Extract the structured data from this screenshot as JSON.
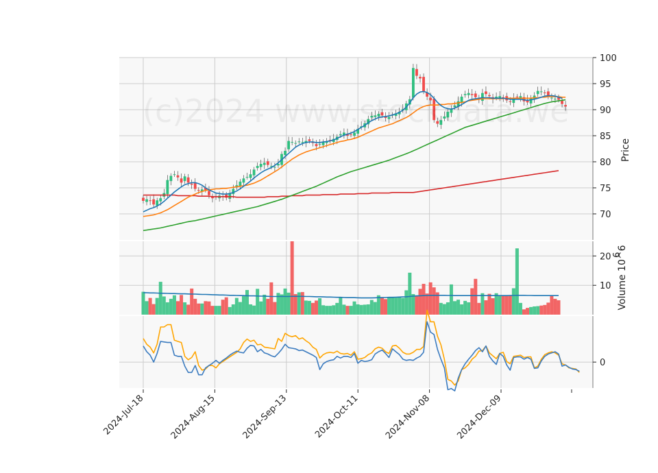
{
  "chart_data": {
    "type": "candlestick",
    "watermark": "(c)2024 www.stockdata.we",
    "colors": {
      "up": "#2fbf7f",
      "down": "#f14b4b",
      "ma_fast": "#1f77b4",
      "ma_mid": "#ff7f0e",
      "ma_slow": "#2ca02c",
      "ma_long": "#d62728",
      "volume_ma": "#1f77b4",
      "macd": "#3b7bbf",
      "signal": "#ffa500",
      "panel_bg": "#f8f8f8",
      "grid": "#cccccc"
    },
    "x_ticks": [
      "2024-Jul-18",
      "2024-Aug-15",
      "2024-Sep-13",
      "2024-Oct-11",
      "2024-Nov-08",
      "2024-Dec-09"
    ],
    "price_panel": {
      "ylabel": "Price",
      "yticks": [
        70,
        75,
        80,
        85,
        90,
        95,
        100
      ],
      "ylim": [
        65,
        100
      ],
      "close": [
        72.5,
        72.8,
        72.5,
        71.8,
        72.6,
        73.0,
        74.0,
        76.5,
        77.3,
        77.6,
        77.0,
        76.0,
        77.2,
        76.0,
        75.6,
        74.8,
        74.5,
        74.7,
        74.6,
        73.6,
        73.0,
        73.2,
        73.5,
        73.4,
        73.1,
        74.0,
        74.8,
        75.5,
        76.2,
        76.8,
        77.1,
        77.6,
        78.5,
        79.2,
        79.6,
        79.8,
        79.4,
        79.2,
        79.0,
        79.6,
        81.5,
        82.1,
        84.0,
        83.8,
        83.6,
        83.9,
        83.8,
        84.0,
        84.0,
        83.6,
        83.0,
        83.4,
        83.8,
        83.9,
        84.0,
        84.4,
        84.8,
        85.3,
        85.6,
        85.0,
        85.2,
        85.6,
        86.3,
        86.8,
        87.4,
        88.2,
        88.8,
        88.9,
        89.2,
        88.9,
        88.4,
        88.6,
        89.0,
        89.3,
        89.6,
        90.1,
        91.2,
        92.0,
        98.0,
        96.5,
        96.0,
        93.5,
        92.5,
        91.8,
        88.0,
        87.3,
        88.0,
        88.7,
        89.6,
        90.2,
        90.8,
        91.6,
        92.5,
        93.0,
        93.2,
        92.8,
        92.4,
        91.9,
        93.2,
        93.0,
        92.6,
        92.0,
        92.5,
        92.6,
        92.3,
        91.8,
        91.5,
        92.2,
        92.4,
        92.6,
        91.6,
        91.4,
        92.3,
        92.7,
        93.6,
        93.5,
        93.2,
        92.5,
        92.3,
        92.1,
        91.9,
        91.1,
        90.6
      ],
      "ma_fast": [
        70.4,
        70.7,
        71.0,
        71.2,
        71.5,
        71.9,
        72.4,
        73.0,
        73.6,
        74.2,
        74.7,
        75.2,
        75.6,
        75.8,
        76.0,
        76.0,
        75.8,
        75.5,
        75.0,
        74.6,
        74.3,
        74.0,
        73.9,
        73.8,
        73.8,
        73.9,
        74.1,
        74.4,
        74.8,
        75.3,
        75.8,
        76.3,
        76.9,
        77.4,
        77.9,
        78.3,
        78.6,
        78.9,
        79.3,
        79.8,
        80.4,
        81.0,
        81.6,
        82.2,
        82.8,
        83.2,
        83.5,
        83.7,
        83.8,
        83.8,
        83.7,
        83.7,
        83.8,
        83.9,
        84.0,
        84.2,
        84.5,
        84.8,
        85.1,
        85.3,
        85.5,
        85.8,
        86.2,
        86.6,
        87.0,
        87.5,
        87.9,
        88.2,
        88.5,
        88.6,
        88.7,
        88.8,
        89.0,
        89.2,
        89.5,
        89.9,
        90.5,
        91.3,
        92.3,
        93.0,
        93.4,
        93.5,
        93.3,
        92.9,
        92.2,
        91.4,
        90.8,
        90.4,
        90.2,
        90.1,
        90.3,
        90.6,
        91.0,
        91.4,
        91.8,
        92.0,
        92.1,
        92.2,
        92.3,
        92.3,
        92.3,
        92.2,
        92.2,
        92.2,
        92.2,
        92.1,
        92.0,
        92.0,
        92.0,
        92.0,
        91.9,
        91.8,
        91.9,
        92.0,
        92.2,
        92.4,
        92.6,
        92.7,
        92.7,
        92.6,
        92.4,
        92.2
      ],
      "ma_mid": [
        69.5,
        69.6,
        69.7,
        69.8,
        70.0,
        70.2,
        70.5,
        70.8,
        71.2,
        71.6,
        72.0,
        72.4,
        72.8,
        73.2,
        73.5,
        73.8,
        74.1,
        74.3,
        74.5,
        74.6,
        74.7,
        74.8,
        74.8,
        74.9,
        74.9,
        75.0,
        75.1,
        75.2,
        75.3,
        75.4,
        75.5,
        75.7,
        75.9,
        76.2,
        76.5,
        76.9,
        77.3,
        77.7,
        78.1,
        78.5,
        79.0,
        79.5,
        80.0,
        80.5,
        80.9,
        81.3,
        81.6,
        81.9,
        82.1,
        82.3,
        82.5,
        82.7,
        82.9,
        83.1,
        83.3,
        83.5,
        83.7,
        83.9,
        84.0,
        84.2,
        84.3,
        84.5,
        84.7,
        85.0,
        85.3,
        85.6,
        85.9,
        86.2,
        86.5,
        86.7,
        86.9,
        87.1,
        87.3,
        87.6,
        87.9,
        88.2,
        88.5,
        88.9,
        89.4,
        89.9,
        90.3,
        90.6,
        90.8,
        90.9,
        90.9,
        90.9,
        91.0,
        91.0,
        91.1,
        91.1,
        91.2,
        91.3,
        91.4,
        91.5,
        91.7,
        91.8,
        91.9,
        92.0,
        92.1,
        92.1,
        92.1,
        92.1,
        92.1,
        92.1,
        92.1,
        92.2,
        92.2,
        92.2,
        92.2,
        92.2,
        92.2,
        92.2,
        92.2,
        92.3,
        92.3,
        92.4,
        92.4,
        92.5,
        92.5,
        92.5,
        92.5,
        92.4,
        92.4
      ],
      "ma_slow": [
        66.8,
        66.9,
        67.0,
        67.1,
        67.2,
        67.3,
        67.45,
        67.6,
        67.75,
        67.9,
        68.05,
        68.2,
        68.35,
        68.5,
        68.6,
        68.7,
        68.85,
        69.0,
        69.15,
        69.3,
        69.45,
        69.6,
        69.75,
        69.9,
        70.05,
        70.2,
        70.35,
        70.5,
        70.65,
        70.8,
        70.95,
        71.1,
        71.25,
        71.4,
        71.6,
        71.8,
        72.0,
        72.2,
        72.4,
        72.6,
        72.8,
        73.05,
        73.3,
        73.55,
        73.8,
        74.05,
        74.3,
        74.55,
        74.8,
        75.05,
        75.3,
        75.6,
        75.9,
        76.2,
        76.5,
        76.8,
        77.1,
        77.35,
        77.6,
        77.85,
        78.1,
        78.3,
        78.5,
        78.7,
        78.9,
        79.1,
        79.3,
        79.5,
        79.7,
        79.9,
        80.1,
        80.3,
        80.55,
        80.8,
        81.05,
        81.3,
        81.55,
        81.8,
        82.1,
        82.4,
        82.7,
        83.0,
        83.3,
        83.6,
        83.9,
        84.2,
        84.5,
        84.8,
        85.1,
        85.4,
        85.7,
        86.0,
        86.3,
        86.6,
        86.8,
        87.0,
        87.2,
        87.4,
        87.6,
        87.8,
        88.0,
        88.2,
        88.4,
        88.6,
        88.8,
        89.0,
        89.2,
        89.4,
        89.6,
        89.8,
        90.0,
        90.2,
        90.4,
        90.6,
        90.8,
        91.0,
        91.2,
        91.35,
        91.5,
        91.6,
        91.7,
        91.8,
        91.9
      ],
      "ma_long": [
        73.6,
        73.6,
        73.6,
        73.6,
        73.6,
        73.6,
        73.6,
        73.6,
        73.6,
        73.6,
        73.5,
        73.5,
        73.5,
        73.5,
        73.5,
        73.5,
        73.4,
        73.4,
        73.4,
        73.4,
        73.3,
        73.3,
        73.3,
        73.3,
        73.3,
        73.3,
        73.3,
        73.2,
        73.2,
        73.2,
        73.2,
        73.2,
        73.2,
        73.2,
        73.2,
        73.2,
        73.3,
        73.3,
        73.3,
        73.3,
        73.4,
        73.4,
        73.4,
        73.5,
        73.5,
        73.5,
        73.5,
        73.6,
        73.6,
        73.6,
        73.6,
        73.6,
        73.7,
        73.7,
        73.7,
        73.7,
        73.7,
        73.8,
        73.8,
        73.8,
        73.8,
        73.8,
        73.9,
        73.9,
        73.9,
        73.9,
        74.0,
        74.0,
        74.0,
        74.0,
        74.0,
        74.0,
        74.1,
        74.1,
        74.1,
        74.1,
        74.1,
        74.1,
        74.1,
        74.2,
        74.3,
        74.4,
        74.5,
        74.6,
        74.7,
        74.8,
        74.9,
        75.0,
        75.1,
        75.2,
        75.3,
        75.4,
        75.5,
        75.6,
        75.7,
        75.8,
        75.9,
        76.0,
        76.1,
        76.2,
        76.3,
        76.4,
        76.5,
        76.6,
        76.7,
        76.8,
        76.9,
        77.0,
        77.1,
        77.2,
        77.3,
        77.4,
        77.5,
        77.6,
        77.7,
        77.8,
        77.9,
        78.0,
        78.1,
        78.2,
        78.3
      ]
    },
    "volume_panel": {
      "ylabel": "Volume  10^6",
      "yticks": [
        10,
        20
      ],
      "ylim": [
        0,
        25
      ],
      "values": [
        7.8,
        4.6,
        5.7,
        3.6,
        5.7,
        11.2,
        6.2,
        4.2,
        5.4,
        6.6,
        4.6,
        6.7,
        4.2,
        3.4,
        8.9,
        5.4,
        3.8,
        3.8,
        4.6,
        4.5,
        3.0,
        3.0,
        3.0,
        5.1,
        5.9,
        2.6,
        3.5,
        5.7,
        4.3,
        6.3,
        8.4,
        3.5,
        3.1,
        8.8,
        4.5,
        6.8,
        5.4,
        11.0,
        4.3,
        7.4,
        6.9,
        8.9,
        7.5,
        25.0,
        7.0,
        7.6,
        7.7,
        4.8,
        4.7,
        4.0,
        4.8,
        5.6,
        3.2,
        3.0,
        3.0,
        3.2,
        4.0,
        5.8,
        3.4,
        3.0,
        3.0,
        4.5,
        3.5,
        3.3,
        3.4,
        3.5,
        5.0,
        4.3,
        6.6,
        6.0,
        5.3,
        6.0,
        5.9,
        5.8,
        6.1,
        5.7,
        8.3,
        14.3,
        7.0,
        6.5,
        8.8,
        10.5,
        7.2,
        11.0,
        9.3,
        7.6,
        4.0,
        3.6,
        4.2,
        10.3,
        4.6,
        5.1,
        3.5,
        4.7,
        4.2,
        9.0,
        12.2,
        4.0,
        7.3,
        4.9,
        7.1,
        5.6,
        7.3,
        6.3,
        6.6,
        6.6,
        6.6,
        9.0,
        22.6,
        4.0,
        1.8,
        2.3,
        2.6,
        2.8,
        2.9,
        3.1,
        3.3,
        4.1,
        6.4,
        5.4,
        4.9
      ],
      "ma": [
        7.5,
        7.45,
        7.4,
        7.4,
        7.35,
        7.3,
        7.3,
        7.25,
        7.2,
        7.2,
        7.15,
        7.1,
        7.1,
        7.05,
        7.0,
        7.0,
        6.95,
        6.9,
        6.9,
        6.85,
        6.8,
        6.75,
        6.7,
        6.7,
        6.65,
        6.6,
        6.6,
        6.55,
        6.5,
        6.5,
        6.45,
        6.4,
        6.4,
        6.35,
        6.3,
        6.3,
        6.25,
        6.2,
        6.2,
        6.2,
        6.2,
        6.2,
        6.2,
        6.25,
        6.25,
        6.25,
        6.25,
        6.2,
        6.2,
        6.15,
        6.1,
        6.1,
        6.05,
        6.0,
        6.0,
        5.95,
        5.9,
        5.9,
        5.85,
        5.8,
        5.8,
        5.8,
        5.75,
        5.7,
        5.7,
        5.7,
        5.7,
        5.75,
        5.8,
        5.8,
        5.85,
        5.9,
        5.9,
        5.95,
        6.0,
        6.05,
        6.1,
        6.2,
        6.3,
        6.4,
        6.45,
        6.5,
        6.55,
        6.6,
        6.6,
        6.6,
        6.6,
        6.6,
        6.55,
        6.55,
        6.5,
        6.5,
        6.5,
        6.5,
        6.5,
        6.5,
        6.5,
        6.5,
        6.5,
        6.5,
        6.5,
        6.5,
        6.5,
        6.5,
        6.5,
        6.5,
        6.55,
        6.55,
        6.6,
        6.6,
        6.6,
        6.55,
        6.55,
        6.5,
        6.5,
        6.5,
        6.5,
        6.5,
        6.5,
        6.5,
        6.5
      ]
    },
    "macd_panel": {
      "yticks": [
        0
      ],
      "ylim": [
        -4.5,
        8
      ],
      "macd": [
        2.8,
        1.8,
        1.2,
        0.0,
        1.5,
        3.6,
        3.5,
        3.4,
        3.4,
        1.2,
        1.0,
        1.0,
        -0.7,
        -1.8,
        -1.8,
        -0.6,
        -2.2,
        -2.2,
        -1.0,
        -0.6,
        -0.2,
        0.3,
        -0.2,
        0.3,
        0.7,
        1.2,
        1.6,
        1.9,
        1.7,
        1.6,
        2.4,
        2.9,
        2.8,
        1.8,
        2.2,
        1.6,
        1.4,
        1.1,
        0.9,
        1.5,
        2.2,
        3.1,
        2.5,
        2.4,
        2.3,
        2.0,
        2.1,
        1.8,
        1.5,
        1.2,
        0.8,
        -1.3,
        -0.3,
        0.1,
        0.3,
        0.4,
        1.0,
        0.7,
        1.0,
        1.0,
        0.8,
        1.5,
        -0.2,
        0.3,
        0.1,
        0.2,
        0.4,
        1.4,
        1.8,
        2.1,
        1.5,
        0.8,
        2.3,
        1.8,
        1.3,
        0.5,
        0.3,
        0.4,
        0.3,
        0.7,
        1.0,
        1.7,
        7.0,
        5.2,
        4.8,
        2.2,
        0.5,
        -1.0,
        -4.8,
        -4.6,
        -5.0,
        -2.8,
        -1.3,
        -0.3,
        0.5,
        1.2,
        2.0,
        2.5,
        1.8,
        2.8,
        1.0,
        0.2,
        -0.4,
        1.5,
        1.0,
        -0.5,
        -1.4,
        0.8,
        0.9,
        0.9,
        0.5,
        0.8,
        0.5,
        -1.1,
        -1.0,
        0.2,
        1.0,
        1.4,
        1.6,
        1.8,
        1.4,
        -0.7,
        -0.5,
        -0.9,
        -1.2,
        -1.3,
        -1.6
      ],
      "signal": [
        4.1,
        3.1,
        2.6,
        1.6,
        3.1,
        6.1,
        6.1,
        6.5,
        6.5,
        3.8,
        3.6,
        3.4,
        1.0,
        0.4,
        0.8,
        1.8,
        -0.6,
        -1.4,
        -1.2,
        -0.6,
        -0.6,
        -1.0,
        -0.3,
        0.1,
        0.5,
        0.9,
        1.3,
        1.7,
        2.3,
        3.4,
        4.0,
        3.6,
        3.8,
        3.0,
        3.1,
        2.6,
        2.5,
        2.4,
        2.3,
        4.1,
        3.6,
        5.0,
        4.6,
        4.4,
        4.6,
        4.0,
        4.2,
        3.7,
        3.3,
        2.6,
        2.2,
        0.7,
        1.3,
        1.6,
        1.7,
        1.6,
        1.9,
        1.5,
        1.4,
        1.5,
        1.2,
        1.8,
        0.5,
        0.6,
        0.8,
        1.3,
        1.6,
        2.3,
        2.6,
        2.4,
        1.8,
        1.5,
        2.8,
        2.9,
        2.4,
        1.7,
        1.4,
        1.4,
        1.7,
        2.2,
        2.2,
        2.7,
        9.0,
        7.0,
        7.0,
        4.5,
        3.0,
        0.5,
        -3.0,
        -3.3,
        -4.0,
        -3.3,
        -1.3,
        -1.0,
        -0.4,
        0.5,
        1.0,
        1.9,
        2.0,
        2.8,
        1.6,
        1.1,
        0.6,
        1.5,
        1.7,
        0.1,
        -0.3,
        1.0,
        1.1,
        1.2,
        0.8,
        0.9,
        0.9,
        -1.0,
        -0.7,
        0.5,
        1.3,
        1.6,
        1.8,
        1.6,
        1.2,
        -0.3,
        -0.5,
        -1.0,
        -1.1,
        -1.2,
        -1.8
      ]
    }
  }
}
